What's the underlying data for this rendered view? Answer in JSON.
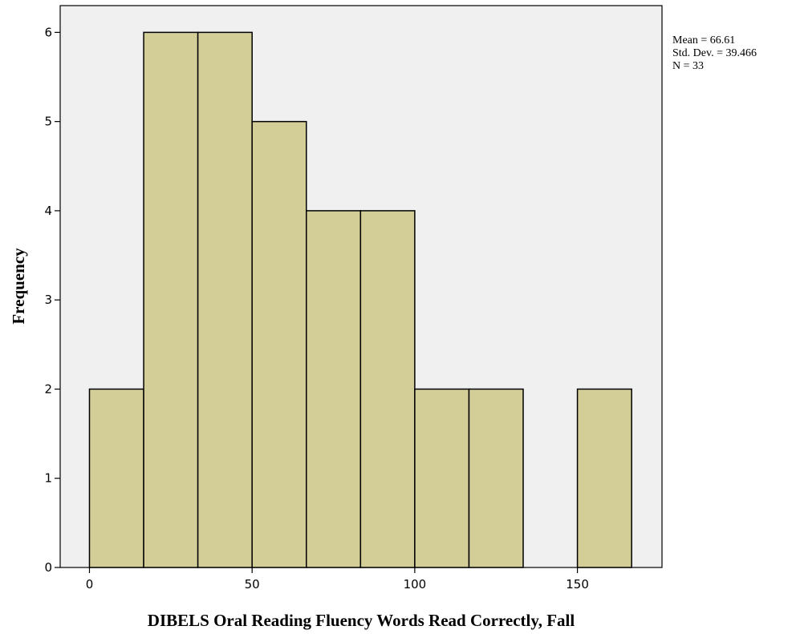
{
  "chart_data": {
    "type": "bar",
    "title": "",
    "xlabel": "DIBELS Oral Reading Fluency Words Read Correctly, Fall",
    "ylabel": "Frequency",
    "bin_width": 16.67,
    "bins": [
      {
        "start": 0,
        "end": 16.67,
        "count": 2
      },
      {
        "start": 16.67,
        "end": 33.33,
        "count": 6
      },
      {
        "start": 33.33,
        "end": 50,
        "count": 6
      },
      {
        "start": 50,
        "end": 66.67,
        "count": 5
      },
      {
        "start": 66.67,
        "end": 83.33,
        "count": 4
      },
      {
        "start": 83.33,
        "end": 100,
        "count": 4
      },
      {
        "start": 100,
        "end": 116.67,
        "count": 2
      },
      {
        "start": 116.67,
        "end": 133.33,
        "count": 2
      },
      {
        "start": 133.33,
        "end": 150,
        "count": 0
      },
      {
        "start": 150,
        "end": 166.67,
        "count": 2
      }
    ],
    "xlim": [
      -9,
      176
    ],
    "ylim": [
      0,
      6.3
    ],
    "xticks": [
      0,
      50,
      100,
      150
    ],
    "xtick_labels": [
      "0",
      "50",
      "100",
      "150"
    ],
    "yticks": [
      0,
      1,
      2,
      3,
      4,
      5,
      6
    ],
    "ytick_labels": [
      "0",
      "1",
      "2",
      "3",
      "4",
      "5",
      "6"
    ],
    "grid": false,
    "colors": {
      "bar_fill": "#d3cd97",
      "bar_stroke": "#000000",
      "plot_background": "#f0f0f0"
    }
  },
  "stats": {
    "mean": "Mean = 66.61",
    "std_dev": "Std. Dev. = 39.466",
    "n": "N = 33"
  }
}
